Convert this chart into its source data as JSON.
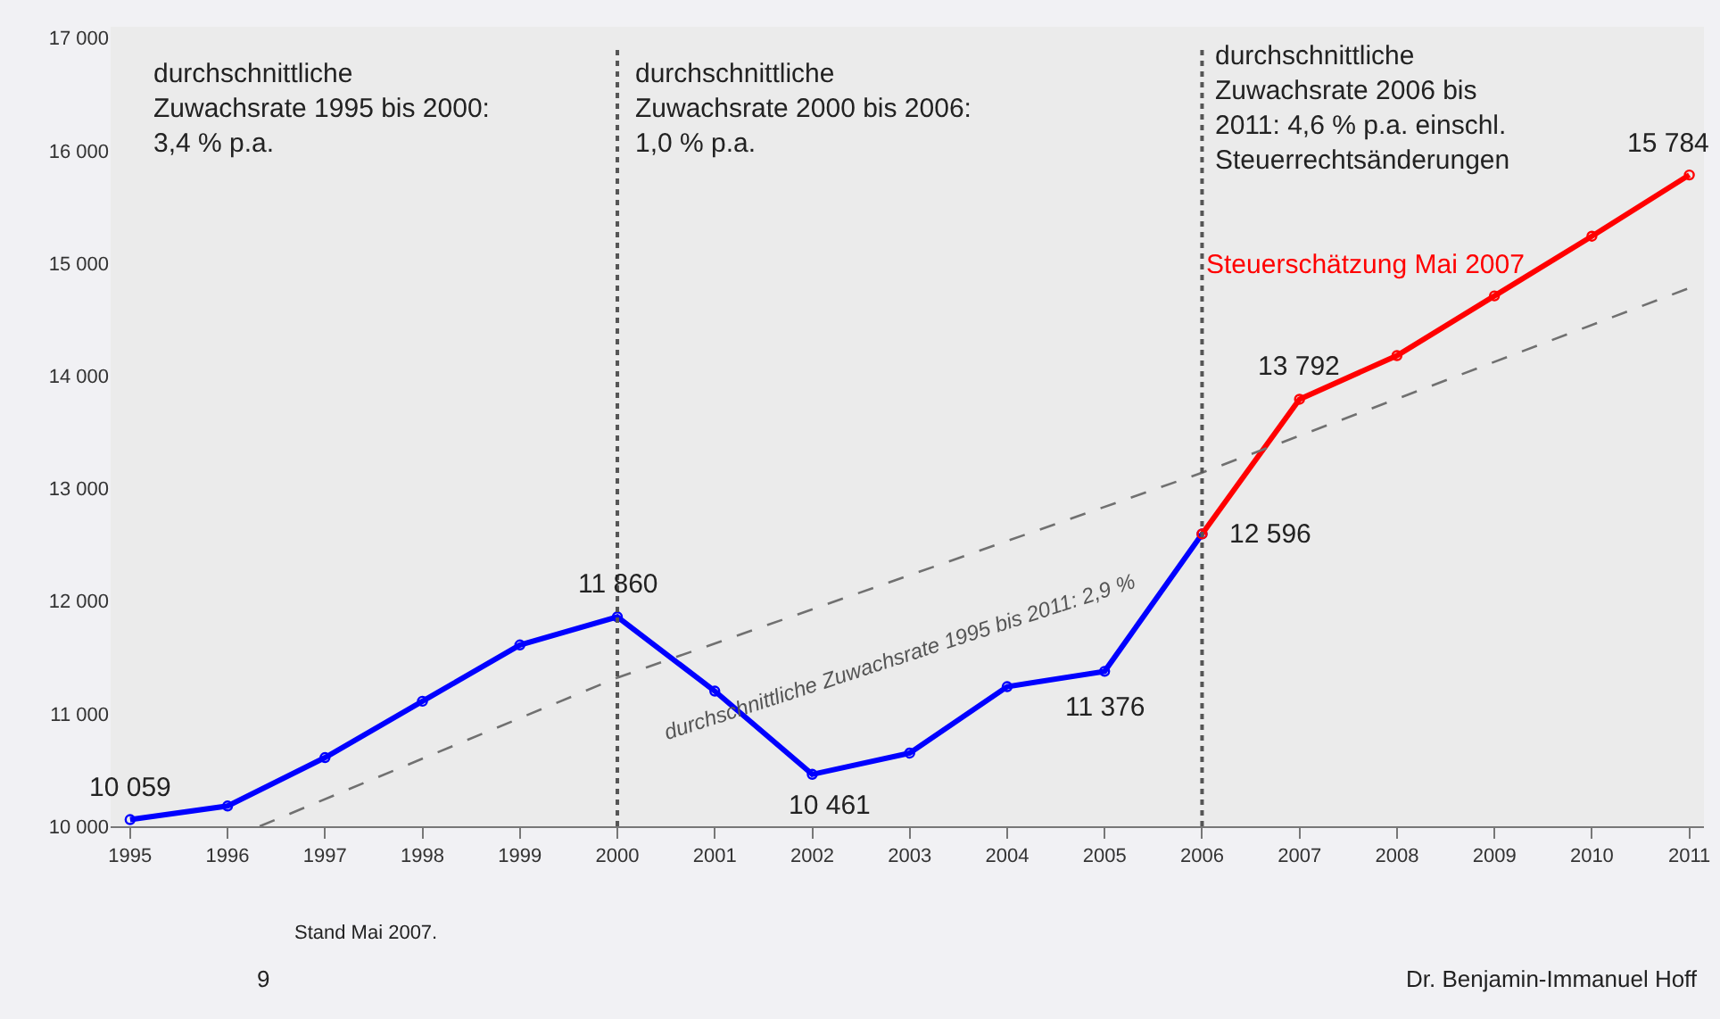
{
  "chart_data": {
    "type": "line",
    "marker": "circle",
    "grid": false,
    "legend": false,
    "xlim": [
      1994.8,
      2011.15
    ],
    "xticks": [
      1995,
      1996,
      1997,
      1998,
      1999,
      2000,
      2001,
      2002,
      2003,
      2004,
      2005,
      2006,
      2007,
      2008,
      2009,
      2010,
      2011
    ],
    "ylim": [
      10000,
      17100
    ],
    "yticks": [
      {
        "value": 10000,
        "label": "10 000"
      },
      {
        "value": 11000,
        "label": "11 000"
      },
      {
        "value": 12000,
        "label": "12 000"
      },
      {
        "value": 13000,
        "label": "13 000"
      },
      {
        "value": 14000,
        "label": "14 000"
      },
      {
        "value": 15000,
        "label": "15 000"
      },
      {
        "value": 16000,
        "label": "16 000"
      },
      {
        "value": 17000,
        "label": "17 000"
      }
    ],
    "series": [
      {
        "color": "#0000ff",
        "x": [
          1995,
          1996,
          1997,
          1998,
          1999,
          2000,
          2001,
          2002,
          2003,
          2004,
          2005,
          2006
        ],
        "values": [
          10059,
          10180,
          10610,
          11110,
          11610,
          11860,
          11200,
          10461,
          10650,
          11240,
          11376,
          12596
        ],
        "value_labels": [
          "10 059",
          null,
          null,
          null,
          null,
          "11 860",
          null,
          "10 461",
          null,
          null,
          "11 376",
          "12 596"
        ]
      },
      {
        "name": "Steuerschätzung Mai 2007",
        "color": "#ff0000",
        "x": [
          2006,
          2007,
          2008,
          2009,
          2010,
          2011
        ],
        "values": [
          12596,
          13792,
          14180,
          14710,
          15240,
          15784
        ],
        "value_labels": [
          null,
          "13 792",
          null,
          null,
          null,
          "15 784"
        ]
      },
      {
        "type": "line",
        "color": "#707070",
        "line_style": "dashed",
        "marker": "none",
        "x": [
          1996.33,
          2000,
          2006,
          2011
        ],
        "values": [
          10000,
          11320,
          13140,
          14780
        ]
      }
    ],
    "ref_lines": [
      {
        "axis": "x",
        "value": 2000,
        "color": "#555555",
        "line_style": "dotted"
      },
      {
        "axis": "x",
        "value": 2006,
        "color": "#555555",
        "line_style": "dotted"
      }
    ],
    "annotations": [
      "durchschnittliche\nZuwachsrate 1995 bis 2000:\n3,4 % p.a.",
      "durchschnittliche\nZuwachsrate 2000 bis 2006:\n1,0 % p.a.",
      "durchschnittliche\nZuwachsrate 2006 bis\n2011: 4,6 % p.a. einschl.\nSteuerrechtsänderungen",
      "durchschnittliche Zuwachsrate 1995 bis 2011: 2,9 %",
      "Stand Mai 2007.",
      "9",
      "Dr. Benjamin-Immanuel Hoff"
    ]
  }
}
